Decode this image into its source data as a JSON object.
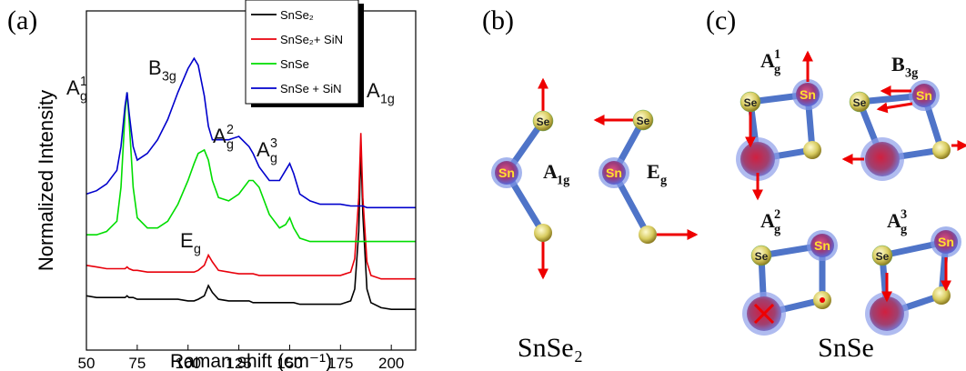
{
  "chart_data": {
    "type": "line",
    "panel_label": "(a)",
    "x_label": "Raman shift (cm⁻¹)",
    "y_label": "Normalized Intensity",
    "x": [
      50,
      55,
      60,
      65,
      67,
      69,
      70,
      71,
      73,
      75,
      80,
      85,
      90,
      95,
      100,
      103,
      105,
      108,
      110,
      112,
      115,
      120,
      125,
      130,
      132,
      135,
      140,
      145,
      148,
      150,
      152,
      155,
      160,
      165,
      170,
      175,
      180,
      182,
      184,
      185,
      186,
      188,
      190,
      195,
      200,
      205,
      212
    ],
    "series": [
      {
        "name": "SnSe₂",
        "color": "#000000",
        "values": [
          1.6,
          1.55,
          1.55,
          1.55,
          1.55,
          1.55,
          1.6,
          1.55,
          1.55,
          1.5,
          1.5,
          1.5,
          1.5,
          1.5,
          1.45,
          1.45,
          1.5,
          1.6,
          1.9,
          1.7,
          1.5,
          1.45,
          1.45,
          1.45,
          1.4,
          1.4,
          1.4,
          1.4,
          1.4,
          1.4,
          1.4,
          1.35,
          1.35,
          1.35,
          1.35,
          1.35,
          1.45,
          1.8,
          3.5,
          6.0,
          4.0,
          1.8,
          1.4,
          1.25,
          1.2,
          1.2,
          1.2
        ]
      },
      {
        "name": "SnSe₂+ SiN",
        "color": "#e8000b",
        "values": [
          2.5,
          2.45,
          2.4,
          2.4,
          2.4,
          2.4,
          2.45,
          2.4,
          2.35,
          2.35,
          2.3,
          2.3,
          2.3,
          2.3,
          2.3,
          2.3,
          2.35,
          2.5,
          2.8,
          2.6,
          2.35,
          2.3,
          2.25,
          2.25,
          2.25,
          2.2,
          2.2,
          2.2,
          2.2,
          2.2,
          2.2,
          2.2,
          2.2,
          2.2,
          2.2,
          2.2,
          2.3,
          2.7,
          4.5,
          6.4,
          4.5,
          2.6,
          2.2,
          2.1,
          2.1,
          2.1,
          2.1
        ]
      },
      {
        "name": "SnSe",
        "color": "#00dd00",
        "values": [
          3.4,
          3.4,
          3.5,
          3.8,
          4.8,
          7.0,
          7.6,
          6.8,
          4.8,
          3.9,
          3.6,
          3.6,
          3.8,
          4.3,
          5.0,
          5.5,
          5.8,
          5.9,
          5.6,
          5.0,
          4.5,
          4.4,
          4.6,
          5.0,
          5.0,
          4.8,
          4.0,
          3.6,
          3.7,
          3.9,
          3.6,
          3.3,
          3.2,
          3.2,
          3.2,
          3.2,
          3.2,
          3.2,
          3.2,
          3.2,
          3.2,
          3.2,
          3.2,
          3.2,
          3.2,
          3.2,
          3.2
        ]
      },
      {
        "name": "SnSe + SiN",
        "color": "#0000cc",
        "values": [
          4.6,
          4.7,
          4.9,
          5.3,
          6.0,
          7.2,
          7.6,
          7.0,
          6.0,
          5.6,
          5.8,
          6.2,
          6.8,
          7.6,
          8.3,
          8.6,
          8.4,
          7.5,
          6.6,
          6.2,
          6.2,
          6.2,
          6.3,
          6.0,
          5.8,
          5.4,
          5.0,
          5.0,
          5.3,
          5.5,
          5.2,
          4.6,
          4.4,
          4.3,
          4.3,
          4.3,
          4.25,
          4.25,
          4.25,
          4.25,
          4.25,
          4.2,
          4.2,
          4.2,
          4.2,
          4.2,
          4.2
        ]
      }
    ],
    "xlim": [
      50,
      212
    ],
    "xticks": [
      50,
      75,
      100,
      125,
      150,
      175,
      200
    ],
    "ylim": [
      0,
      10
    ],
    "annotations": [
      {
        "text": "A",
        "sub": "g",
        "sup": "1"
      },
      {
        "text": "B",
        "sub": "3g"
      },
      {
        "text": "A",
        "sub": "g",
        "sup": "2"
      },
      {
        "text": "A",
        "sub": "g",
        "sup": "3"
      },
      {
        "text": "A",
        "sub": "1g"
      },
      {
        "text": "E",
        "sub": "g"
      }
    ]
  },
  "diagram_b": {
    "panel_label": "(b)",
    "compound": "SnSe₂",
    "atoms": [
      "Se",
      "Sn",
      "Se",
      "Sn"
    ],
    "modes": [
      {
        "text": "A",
        "sub": "1g"
      },
      {
        "text": "E",
        "sub": "g"
      }
    ]
  },
  "diagram_c": {
    "panel_label": "(c)",
    "compound": "SnSe",
    "atoms": [
      "Se",
      "Sn",
      "Se",
      "Sn",
      "Se",
      "Sn",
      "Se",
      "Sn"
    ],
    "modes": [
      {
        "text": "A",
        "sub": "g",
        "sup": "1"
      },
      {
        "text": "B",
        "sub": "3g"
      },
      {
        "text": "A",
        "sub": "g",
        "sup": "2"
      },
      {
        "text": "A",
        "sub": "g",
        "sup": "3"
      }
    ]
  }
}
